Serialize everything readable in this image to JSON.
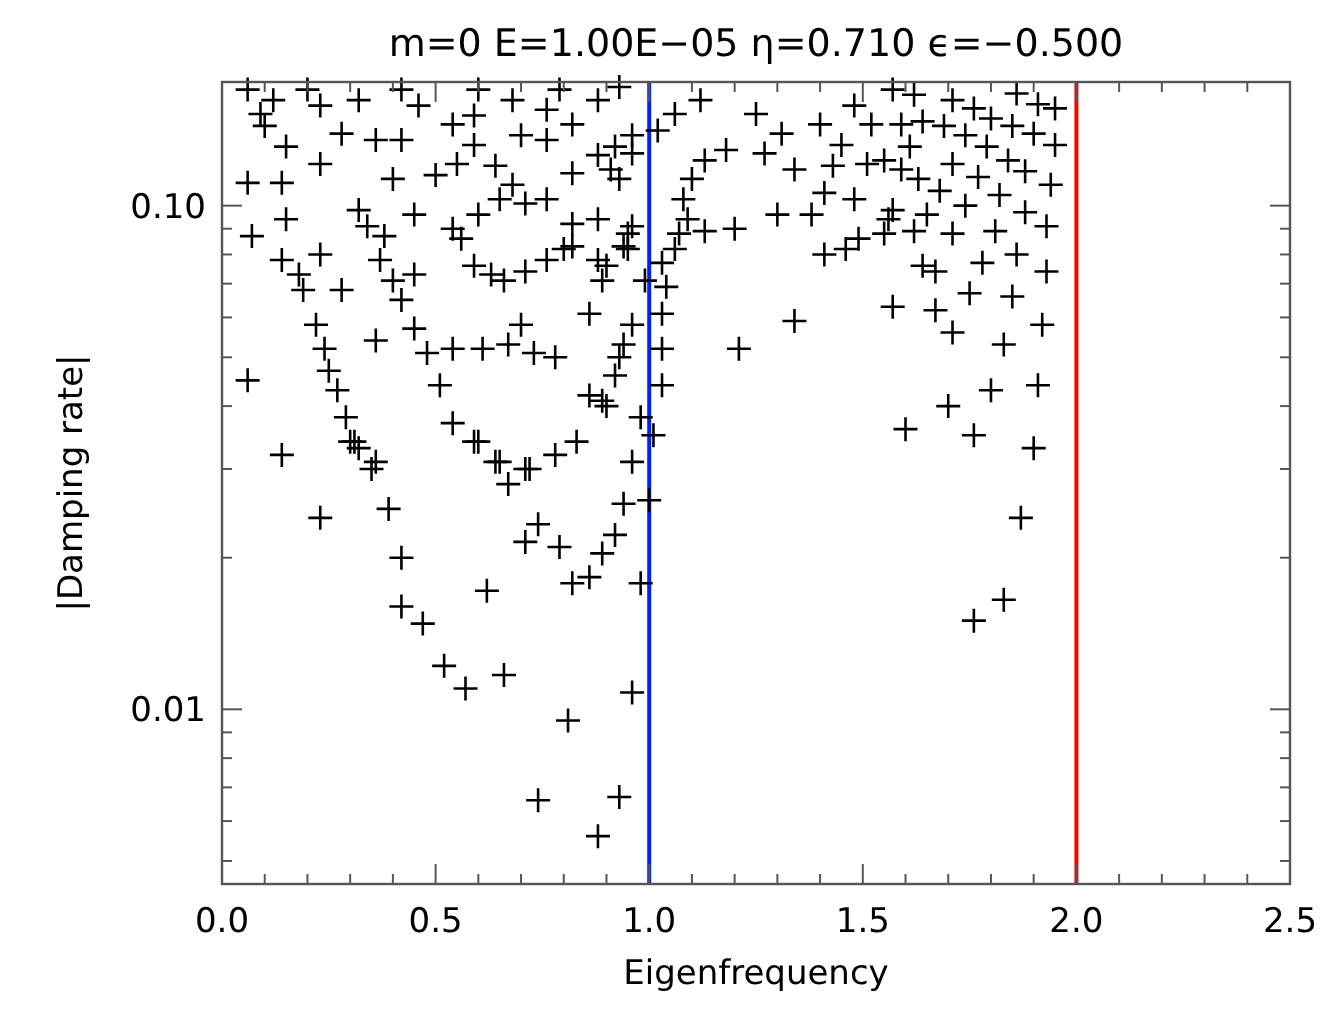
{
  "chart_data": {
    "type": "scatter",
    "title": "m=0  E=1.00E−05  η=0.710  ϵ=−0.500",
    "xlabel": "Eigenfrequency",
    "ylabel": "|Damping rate|",
    "log": "y",
    "marker": "cross",
    "grid": false,
    "xlim": [
      0,
      2.5
    ],
    "ylim": [
      0.0045,
      0.176
    ],
    "xticks": [
      {
        "value": 0,
        "label": "0.0"
      },
      {
        "value": 0.1,
        "label": null
      },
      {
        "value": 0.2,
        "label": null
      },
      {
        "value": 0.3,
        "label": null
      },
      {
        "value": 0.4,
        "label": null
      },
      {
        "value": 0.5,
        "label": "0.5"
      },
      {
        "value": 0.6,
        "label": null
      },
      {
        "value": 0.7,
        "label": null
      },
      {
        "value": 0.8,
        "label": null
      },
      {
        "value": 0.9,
        "label": null
      },
      {
        "value": 1,
        "label": "1.0"
      },
      {
        "value": 1.1,
        "label": null
      },
      {
        "value": 1.2,
        "label": null
      },
      {
        "value": 1.3,
        "label": null
      },
      {
        "value": 1.4,
        "label": null
      },
      {
        "value": 1.5,
        "label": "1.5"
      },
      {
        "value": 1.6,
        "label": null
      },
      {
        "value": 1.7,
        "label": null
      },
      {
        "value": 1.8,
        "label": null
      },
      {
        "value": 1.9,
        "label": null
      },
      {
        "value": 2,
        "label": "2.0"
      },
      {
        "value": 2.1,
        "label": null
      },
      {
        "value": 2.2,
        "label": null
      },
      {
        "value": 2.3,
        "label": null
      },
      {
        "value": 2.4,
        "label": null
      },
      {
        "value": 2.5,
        "label": "2.5"
      }
    ],
    "yticks": [
      {
        "value": 0.005,
        "label": null
      },
      {
        "value": 0.006,
        "label": null
      },
      {
        "value": 0.007,
        "label": null
      },
      {
        "value": 0.008,
        "label": null
      },
      {
        "value": 0.009,
        "label": null
      },
      {
        "value": 0.01,
        "label": "0.01"
      },
      {
        "value": 0.02,
        "label": null
      },
      {
        "value": 0.03,
        "label": null
      },
      {
        "value": 0.04,
        "label": null
      },
      {
        "value": 0.05,
        "label": null
      },
      {
        "value": 0.06,
        "label": null
      },
      {
        "value": 0.07,
        "label": null
      },
      {
        "value": 0.08,
        "label": null
      },
      {
        "value": 0.09,
        "label": null
      },
      {
        "value": 0.1,
        "label": "0.10"
      }
    ],
    "ref_lines": [
      {
        "axis": "x",
        "value": 1,
        "color": "#0022ff"
      },
      {
        "axis": "x",
        "value": 2,
        "color": "#ff0000"
      }
    ],
    "series": [
      {
        "color": "#000000",
        "x": [
          0.14,
          0.23,
          0.39,
          0.42,
          0.42,
          0.47,
          0.52,
          0.57,
          0.66,
          0.62,
          0.81,
          0.74,
          0.93,
          0.88,
          0.96,
          0.98,
          0.82,
          0.86,
          0.89,
          0.92,
          0.94,
          1.0,
          0.96,
          0.79,
          0.74,
          0.71,
          0.72,
          0.67,
          0.64,
          0.6,
          0.78,
          0.83,
          0.35,
          0.32,
          0.3,
          1.9,
          1.87,
          1.83,
          1.76,
          1.34,
          1.21,
          1.57,
          1.67,
          1.71,
          1.83,
          1.92,
          1.91,
          1.8,
          1.7,
          1.6,
          1.76,
          1.75,
          1.85,
          1.93,
          1.86,
          1.78,
          1.67,
          1.64,
          1.41,
          1.46,
          1.49,
          1.55,
          1.62,
          1.71,
          1.81,
          1.93,
          1.88,
          1.74,
          1.65,
          1.57,
          1.56,
          1.48,
          1.41,
          1.3,
          1.38,
          1.2,
          1.82,
          1.94,
          1.88,
          1.77,
          1.68,
          1.63,
          1.59,
          1.71,
          1.84,
          1.95,
          1.9,
          1.79,
          1.74,
          1.69,
          1.61,
          1.55,
          1.51,
          1.43,
          1.34,
          1.45,
          1.52,
          1.59,
          1.64,
          1.8,
          1.85,
          1.95,
          1.91,
          1.86,
          1.76,
          1.71,
          1.62,
          1.57,
          1.48,
          1.4,
          1.31,
          1.27,
          1.03,
          1.03,
          1.01,
          0.98,
          0.9,
          0.92,
          0.94,
          0.96,
          1.03,
          0.99,
          1.04,
          1.03,
          1.06,
          0.95,
          0.9,
          0.96,
          1.07,
          1.13,
          1.09,
          1.08,
          1.1,
          1.13,
          1.18,
          0.93,
          0.91,
          0.96,
          1.02,
          1.06,
          1.12,
          1.25,
          0.06,
          0.07,
          0.14,
          0.23,
          0.18,
          0.19,
          0.28,
          0.22,
          0.24,
          0.25,
          0.27,
          0.29,
          0.31,
          0.36,
          0.36,
          0.37,
          0.4,
          0.45,
          0.42,
          0.45,
          0.48,
          0.51,
          0.54,
          0.54,
          0.59,
          0.65,
          0.71,
          0.86,
          0.89,
          0.93,
          0.86,
          0.89,
          0.94,
          0.61,
          0.67,
          0.73,
          0.78,
          0.7,
          0.63,
          0.66,
          0.71,
          0.76,
          0.8,
          0.82,
          0.88,
          0.56,
          0.59,
          0.54,
          0.45,
          0.32,
          0.15,
          0.34,
          0.38,
          0.71,
          0.76,
          0.82,
          0.88,
          0.95,
          0.6,
          0.65,
          0.06,
          0.14,
          0.23,
          0.4,
          0.5,
          0.55,
          0.64,
          0.68,
          0.82,
          0.88,
          0.92,
          0.96,
          0.76,
          0.7,
          0.59,
          0.54,
          0.42,
          0.36,
          0.28,
          0.15,
          0.1,
          0.09,
          0.12,
          0.23,
          0.32,
          0.46,
          0.59,
          0.68,
          0.76,
          0.82,
          0.88,
          0.93,
          0.06,
          0.2,
          0.42,
          0.6,
          0.79
        ],
        "values": [
          0.032,
          0.024,
          0.025,
          0.02,
          0.016,
          0.0148,
          0.0122,
          0.011,
          0.0117,
          0.0172,
          0.0095,
          0.0066,
          0.0067,
          0.0056,
          0.0108,
          0.0178,
          0.0178,
          0.0183,
          0.0204,
          0.0222,
          0.0256,
          0.026,
          0.031,
          0.021,
          0.0233,
          0.0215,
          0.03,
          0.028,
          0.031,
          0.034,
          0.032,
          0.034,
          0.03,
          0.033,
          0.034,
          0.033,
          0.024,
          0.0165,
          0.015,
          0.059,
          0.052,
          0.063,
          0.062,
          0.056,
          0.053,
          0.058,
          0.044,
          0.043,
          0.04,
          0.036,
          0.035,
          0.067,
          0.066,
          0.074,
          0.08,
          0.077,
          0.074,
          0.076,
          0.08,
          0.082,
          0.086,
          0.088,
          0.089,
          0.088,
          0.089,
          0.091,
          0.097,
          0.1,
          0.096,
          0.098,
          0.094,
          0.103,
          0.106,
          0.096,
          0.096,
          0.09,
          0.105,
          0.11,
          0.117,
          0.114,
          0.107,
          0.113,
          0.118,
          0.121,
          0.123,
          0.132,
          0.139,
          0.131,
          0.138,
          0.144,
          0.131,
          0.123,
          0.121,
          0.12,
          0.118,
          0.132,
          0.145,
          0.145,
          0.147,
          0.149,
          0.144,
          0.156,
          0.159,
          0.167,
          0.156,
          0.162,
          0.166,
          0.17,
          0.158,
          0.145,
          0.139,
          0.127,
          0.052,
          0.044,
          0.035,
          0.038,
          0.04,
          0.046,
          0.053,
          0.058,
          0.061,
          0.071,
          0.069,
          0.077,
          0.082,
          0.082,
          0.076,
          0.091,
          0.088,
          0.089,
          0.094,
          0.103,
          0.113,
          0.123,
          0.129,
          0.113,
          0.118,
          0.127,
          0.141,
          0.152,
          0.162,
          0.152,
          0.045,
          0.087,
          0.078,
          0.08,
          0.073,
          0.068,
          0.068,
          0.058,
          0.052,
          0.047,
          0.043,
          0.038,
          0.034,
          0.031,
          0.054,
          0.078,
          0.071,
          0.073,
          0.065,
          0.057,
          0.051,
          0.044,
          0.052,
          0.037,
          0.034,
          0.031,
          0.03,
          0.042,
          0.041,
          0.05,
          0.061,
          0.071,
          0.083,
          0.052,
          0.053,
          0.051,
          0.05,
          0.058,
          0.073,
          0.071,
          0.074,
          0.078,
          0.082,
          0.083,
          0.078,
          0.086,
          0.076,
          0.09,
          0.096,
          0.098,
          0.094,
          0.091,
          0.087,
          0.101,
          0.103,
          0.092,
          0.094,
          0.088,
          0.096,
          0.103,
          0.111,
          0.111,
          0.121,
          0.113,
          0.115,
          0.121,
          0.12,
          0.11,
          0.116,
          0.126,
          0.131,
          0.138,
          0.135,
          0.138,
          0.132,
          0.145,
          0.135,
          0.135,
          0.139,
          0.131,
          0.144,
          0.152,
          0.162,
          0.158,
          0.162,
          0.158,
          0.151,
          0.162,
          0.155,
          0.145,
          0.162,
          0.172,
          0.17,
          0.17,
          0.17,
          0.17,
          0.17
        ]
      }
    ]
  }
}
